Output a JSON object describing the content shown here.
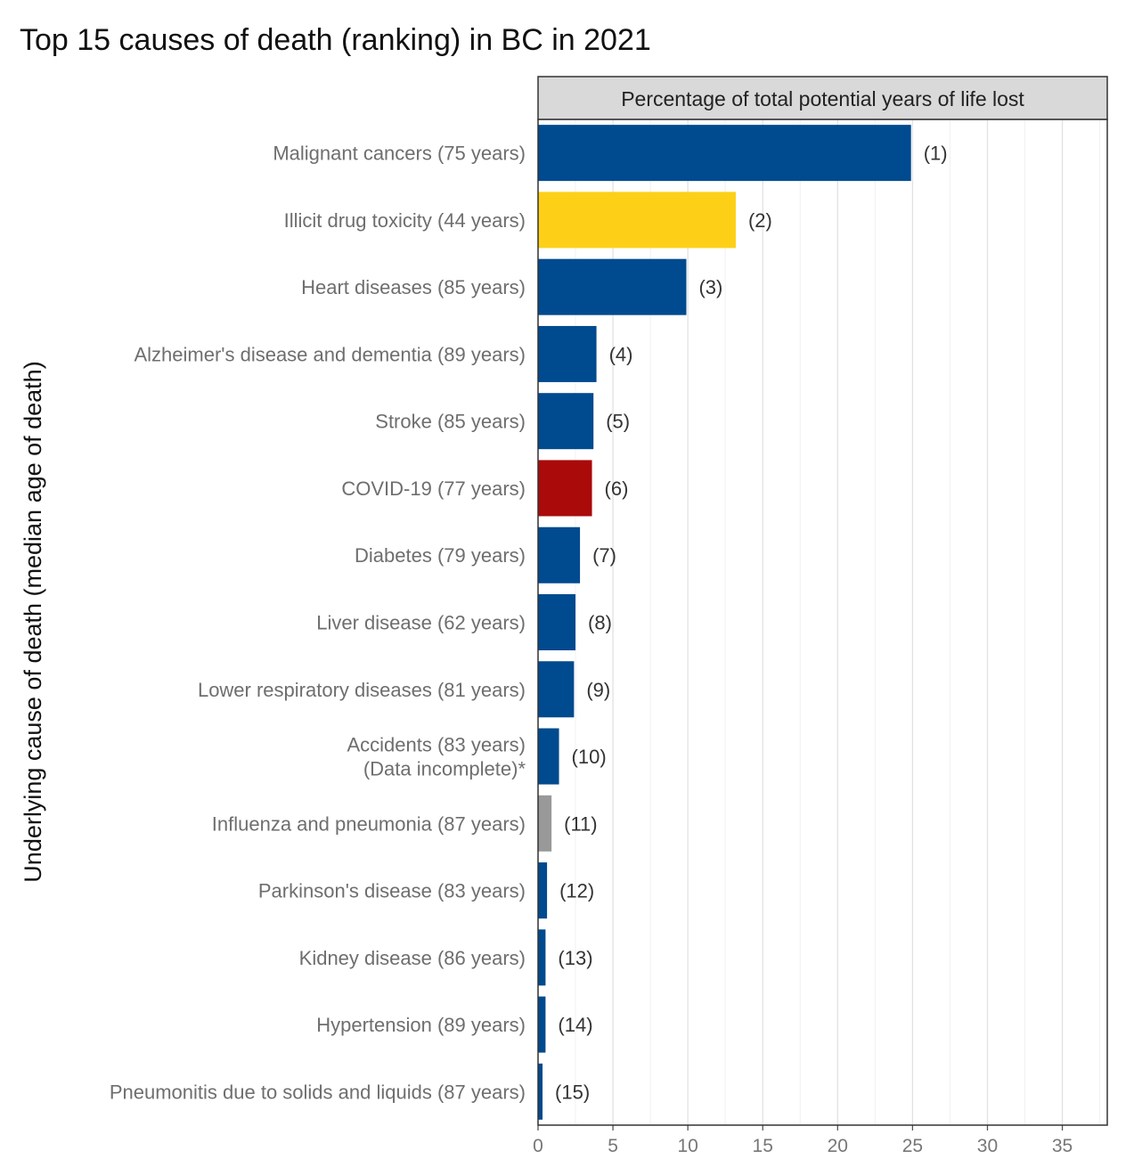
{
  "chart_data": {
    "type": "bar",
    "orientation": "horizontal",
    "title": "Top 15 causes of death (ranking) in BC in 2021",
    "strip_label": "Percentage of total potential years of life lost",
    "ylabel": "Underlying cause of death (median age of death)",
    "xlabel": "",
    "xlim": [
      0,
      38
    ],
    "x_ticks": [
      0,
      5,
      10,
      15,
      20,
      25,
      30,
      35
    ],
    "grid": true,
    "categories": [
      [
        "Malignant cancers (75 years)"
      ],
      [
        "Illicit drug toxicity (44 years)"
      ],
      [
        "Heart diseases (85 years)"
      ],
      [
        "Alzheimer's disease and dementia (89 years)"
      ],
      [
        "Stroke (85 years)"
      ],
      [
        "COVID-19 (77 years)"
      ],
      [
        "Diabetes (79 years)"
      ],
      [
        "Liver disease (62 years)"
      ],
      [
        "Lower respiratory diseases (81 years)"
      ],
      [
        "Accidents (83 years)",
        "(Data incomplete)*"
      ],
      [
        "Influenza and pneumonia (87 years)"
      ],
      [
        "Parkinson's disease (83 years)"
      ],
      [
        "Kidney disease (86 years)"
      ],
      [
        "Hypertension (89 years)"
      ],
      [
        "Pneumonitis due to solids and liquids (87 years)"
      ]
    ],
    "values": [
      24.9,
      13.2,
      9.9,
      3.9,
      3.7,
      3.6,
      2.8,
      2.5,
      2.4,
      1.4,
      0.9,
      0.6,
      0.5,
      0.5,
      0.3
    ],
    "rank_labels": [
      "(1)",
      "(2)",
      "(3)",
      "(4)",
      "(5)",
      "(6)",
      "(7)",
      "(8)",
      "(9)",
      "(10)",
      "(11)",
      "(12)",
      "(13)",
      "(14)",
      "(15)"
    ],
    "bar_colors": [
      "#004a8f",
      "#fdd017",
      "#004a8f",
      "#004a8f",
      "#004a8f",
      "#aa0a0a",
      "#004a8f",
      "#004a8f",
      "#004a8f",
      "#004a8f",
      "#999999",
      "#004a8f",
      "#004a8f",
      "#004a8f",
      "#004a8f"
    ]
  }
}
